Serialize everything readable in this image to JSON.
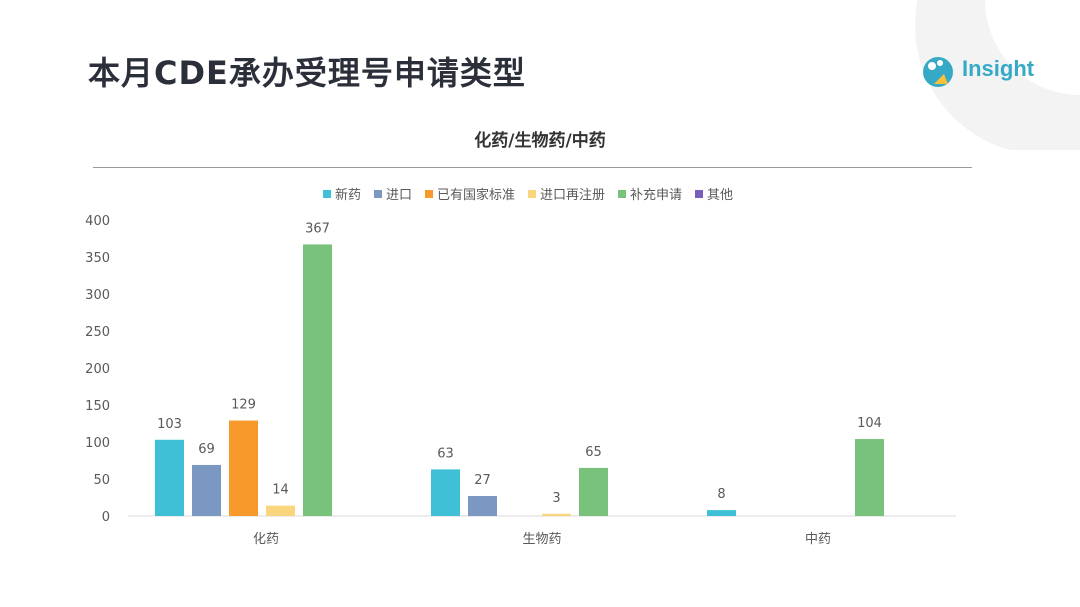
{
  "page": {
    "title": "本月CDE承办受理号申请类型",
    "logo_text": "Insight"
  },
  "chart_data": {
    "type": "bar",
    "title": "化药/生物药/中药",
    "categories": [
      "化药",
      "生物药",
      "中药"
    ],
    "ylim": [
      0,
      400
    ],
    "yticks": [
      0,
      50,
      100,
      150,
      200,
      250,
      300,
      350,
      400
    ],
    "grid": false,
    "legend_position": "top",
    "series": [
      {
        "name": "新药",
        "color": "#40c0d6",
        "values": [
          103,
          63,
          8
        ]
      },
      {
        "name": "进口",
        "color": "#7b98c2",
        "values": [
          69,
          27,
          null
        ]
      },
      {
        "name": "已有国家标准",
        "color": "#f79a2b",
        "values": [
          129,
          null,
          null
        ]
      },
      {
        "name": "进口再注册",
        "color": "#f9d57e",
        "values": [
          14,
          3,
          null
        ]
      },
      {
        "name": "补充申请",
        "color": "#79c27b",
        "values": [
          367,
          65,
          104
        ]
      },
      {
        "name": "其他",
        "color": "#7a5fb8",
        "values": [
          null,
          null,
          null
        ]
      }
    ]
  }
}
